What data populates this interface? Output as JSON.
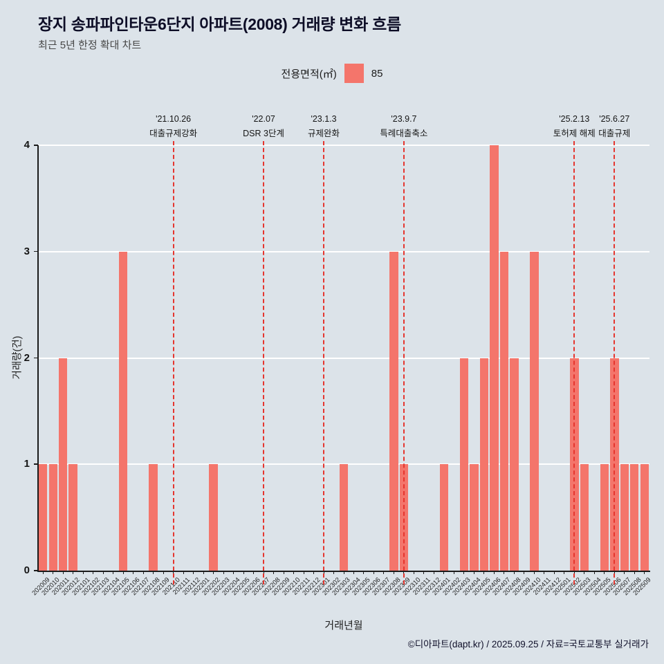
{
  "header": {
    "title": "장지 송파파인타운6단지 아파트(2008) 거래량 변화 흐름",
    "subtitle": "최근 5년 한정 확대 차트"
  },
  "legend": {
    "label": "전용면적(㎡)",
    "series_name": "85"
  },
  "chart_data": {
    "type": "bar",
    "title": "장지 송파파인타운6단지 아파트(2008) 거래량 변화 흐름",
    "xlabel": "거래년월",
    "ylabel": "거래량(건)",
    "ylim": [
      0,
      4
    ],
    "yticks": [
      0,
      1,
      2,
      3,
      4
    ],
    "grid": "horizontal white gridlines",
    "legend_position": "top-center",
    "categories": [
      "202009",
      "202010",
      "202011",
      "202012",
      "202101",
      "202102",
      "202103",
      "202104",
      "202105",
      "202106",
      "202107",
      "202108",
      "202109",
      "202110",
      "202111",
      "202112",
      "202201",
      "202202",
      "202203",
      "202204",
      "202205",
      "202206",
      "202207",
      "202208",
      "202209",
      "202210",
      "202211",
      "202212",
      "202301",
      "202302",
      "202303",
      "202304",
      "202305",
      "202306",
      "202307",
      "202308",
      "202309",
      "202310",
      "202311",
      "202312",
      "202401",
      "202402",
      "202403",
      "202404",
      "202405",
      "202406",
      "202407",
      "202408",
      "202409",
      "202410",
      "202411",
      "202412",
      "202501",
      "202502",
      "202503",
      "202504",
      "202505",
      "202506",
      "202507",
      "202508",
      "202509"
    ],
    "series": [
      {
        "name": "85",
        "values": [
          1,
          1,
          2,
          1,
          0,
          0,
          0,
          0,
          3,
          0,
          0,
          1,
          0,
          0,
          0,
          0,
          0,
          1,
          0,
          0,
          0,
          0,
          0,
          0,
          0,
          0,
          0,
          0,
          0,
          0,
          1,
          0,
          0,
          0,
          0,
          3,
          1,
          0,
          0,
          0,
          1,
          0,
          2,
          1,
          2,
          4,
          3,
          2,
          0,
          3,
          0,
          0,
          0,
          2,
          1,
          0,
          1,
          2,
          1,
          1,
          1
        ]
      }
    ],
    "annotations": [
      {
        "month": "202110",
        "date": "'21.10.26",
        "label": "대출규제강화"
      },
      {
        "month": "202207",
        "date": "'22.07",
        "label": "DSR 3단계"
      },
      {
        "month": "202301",
        "date": "'23.1.3",
        "label": "규제완화"
      },
      {
        "month": "202309",
        "date": "'23.9.7",
        "label": "특례대출축소"
      },
      {
        "month": "202502",
        "date": "'25.2.13",
        "label": "토허제 해제"
      },
      {
        "month": "202506",
        "date": "'25.6.27",
        "label": "대출규제"
      }
    ]
  },
  "footer": {
    "credit": "©디아파트(dapt.kr) / 2025.09.25 / 자료=국토교통부 실거래가"
  },
  "colors": {
    "background": "#dce3e9",
    "bar": "#f4756b",
    "annotation_line": "#e5352e",
    "grid": "#ffffff",
    "axis": "#1a1a1a"
  }
}
